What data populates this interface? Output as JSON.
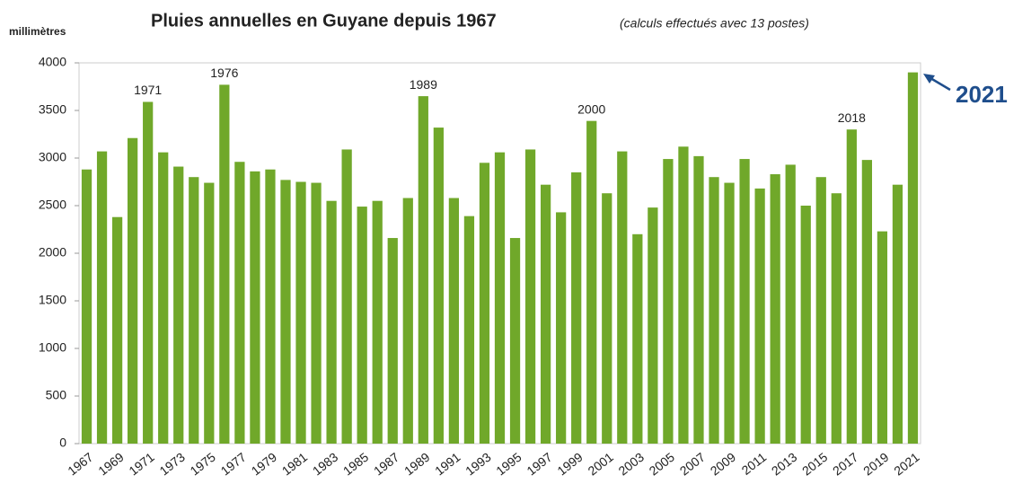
{
  "chart_data": {
    "type": "bar",
    "title": "Pluies annuelles en Guyane depuis 1967",
    "subtitle": "(calculs effectués avec 13 postes)",
    "y_label": "millimètres",
    "categories": [
      "1967",
      null,
      "1969",
      null,
      "1971",
      null,
      "1973",
      null,
      "1975",
      null,
      "1977",
      null,
      "1979",
      null,
      "1981",
      null,
      "1983",
      null,
      "1985",
      null,
      "1987",
      null,
      "1989",
      null,
      "1991",
      null,
      "1993",
      null,
      "1995",
      null,
      "1997",
      null,
      "1999",
      null,
      "2001",
      null,
      "2003",
      null,
      "2005",
      null,
      "2007",
      null,
      "2009",
      null,
      "2011",
      null,
      "2013",
      null,
      "2015",
      null,
      "2017",
      null,
      "2019",
      null,
      "2021"
    ],
    "values": [
      2880,
      3070,
      2380,
      3210,
      3590,
      3060,
      2910,
      2800,
      2740,
      3770,
      2960,
      2860,
      2880,
      2770,
      2750,
      2740,
      2550,
      3090,
      2490,
      2550,
      2160,
      2580,
      3650,
      3320,
      2580,
      2390,
      2950,
      3060,
      2160,
      3090,
      2720,
      2430,
      2850,
      3390,
      2630,
      3070,
      2200,
      2480,
      2990,
      3120,
      3020,
      2800,
      2740,
      2990,
      2680,
      2830,
      2930,
      2500,
      2800,
      2630,
      3300,
      2980,
      2230,
      2720,
      3900
    ],
    "color": "#70a82a",
    "ylim": [
      0,
      4000
    ],
    "yticks": [
      0,
      500,
      1000,
      1500,
      2000,
      2500,
      3000,
      3500,
      4000
    ],
    "grid": false,
    "annotations": [
      {
        "text": "1971",
        "x": 1971
      },
      {
        "text": "1976",
        "x": 1976
      },
      {
        "text": "1989",
        "x": 1989
      },
      {
        "text": "2000",
        "x": 2000
      },
      {
        "text": "2018",
        "x": 2017
      }
    ],
    "highlight": {
      "text": "2021",
      "color": "#1f4e8c"
    }
  }
}
